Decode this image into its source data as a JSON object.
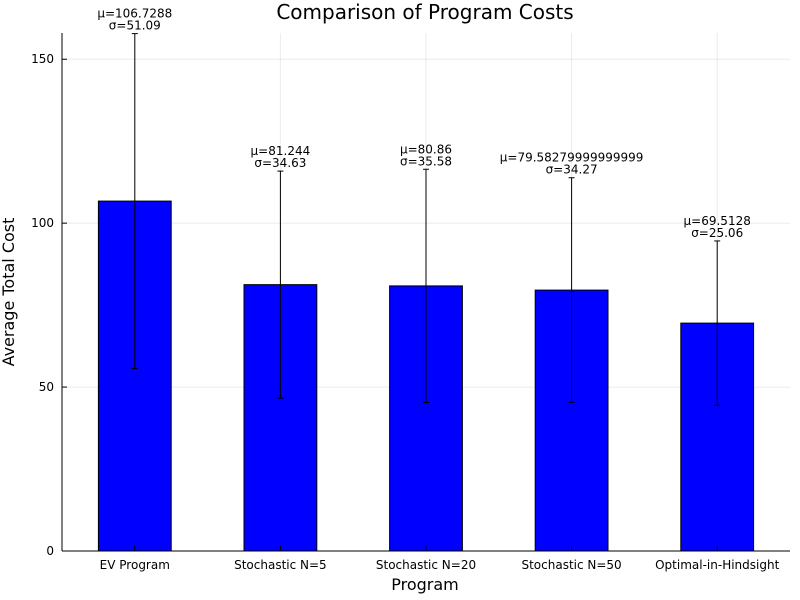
{
  "chart_data": {
    "type": "bar",
    "title": "Comparison of Program Costs",
    "xlabel": "Program",
    "ylabel": "Average Total Cost",
    "ylim": [
      0,
      158
    ],
    "yticks": [
      0,
      50,
      100,
      150
    ],
    "grid": true,
    "bar_color": "#0000ff",
    "categories": [
      "EV Program",
      "Stochastic N=5",
      "Stochastic N=20",
      "Stochastic N=50",
      "Optimal-in-Hindsight"
    ],
    "values": [
      106.7288,
      81.244,
      80.86,
      79.58279999999999,
      69.5128
    ],
    "errors": [
      51.09,
      34.63,
      35.58,
      34.27,
      25.06
    ],
    "labels": [
      [
        "μ=106.7288",
        "σ=51.09"
      ],
      [
        "μ=81.244",
        "σ=34.63"
      ],
      [
        "μ=80.86",
        "σ=35.58"
      ],
      [
        "μ=79.58279999999999",
        "σ=34.27"
      ],
      [
        "μ=69.5128",
        "σ=25.06"
      ]
    ]
  }
}
